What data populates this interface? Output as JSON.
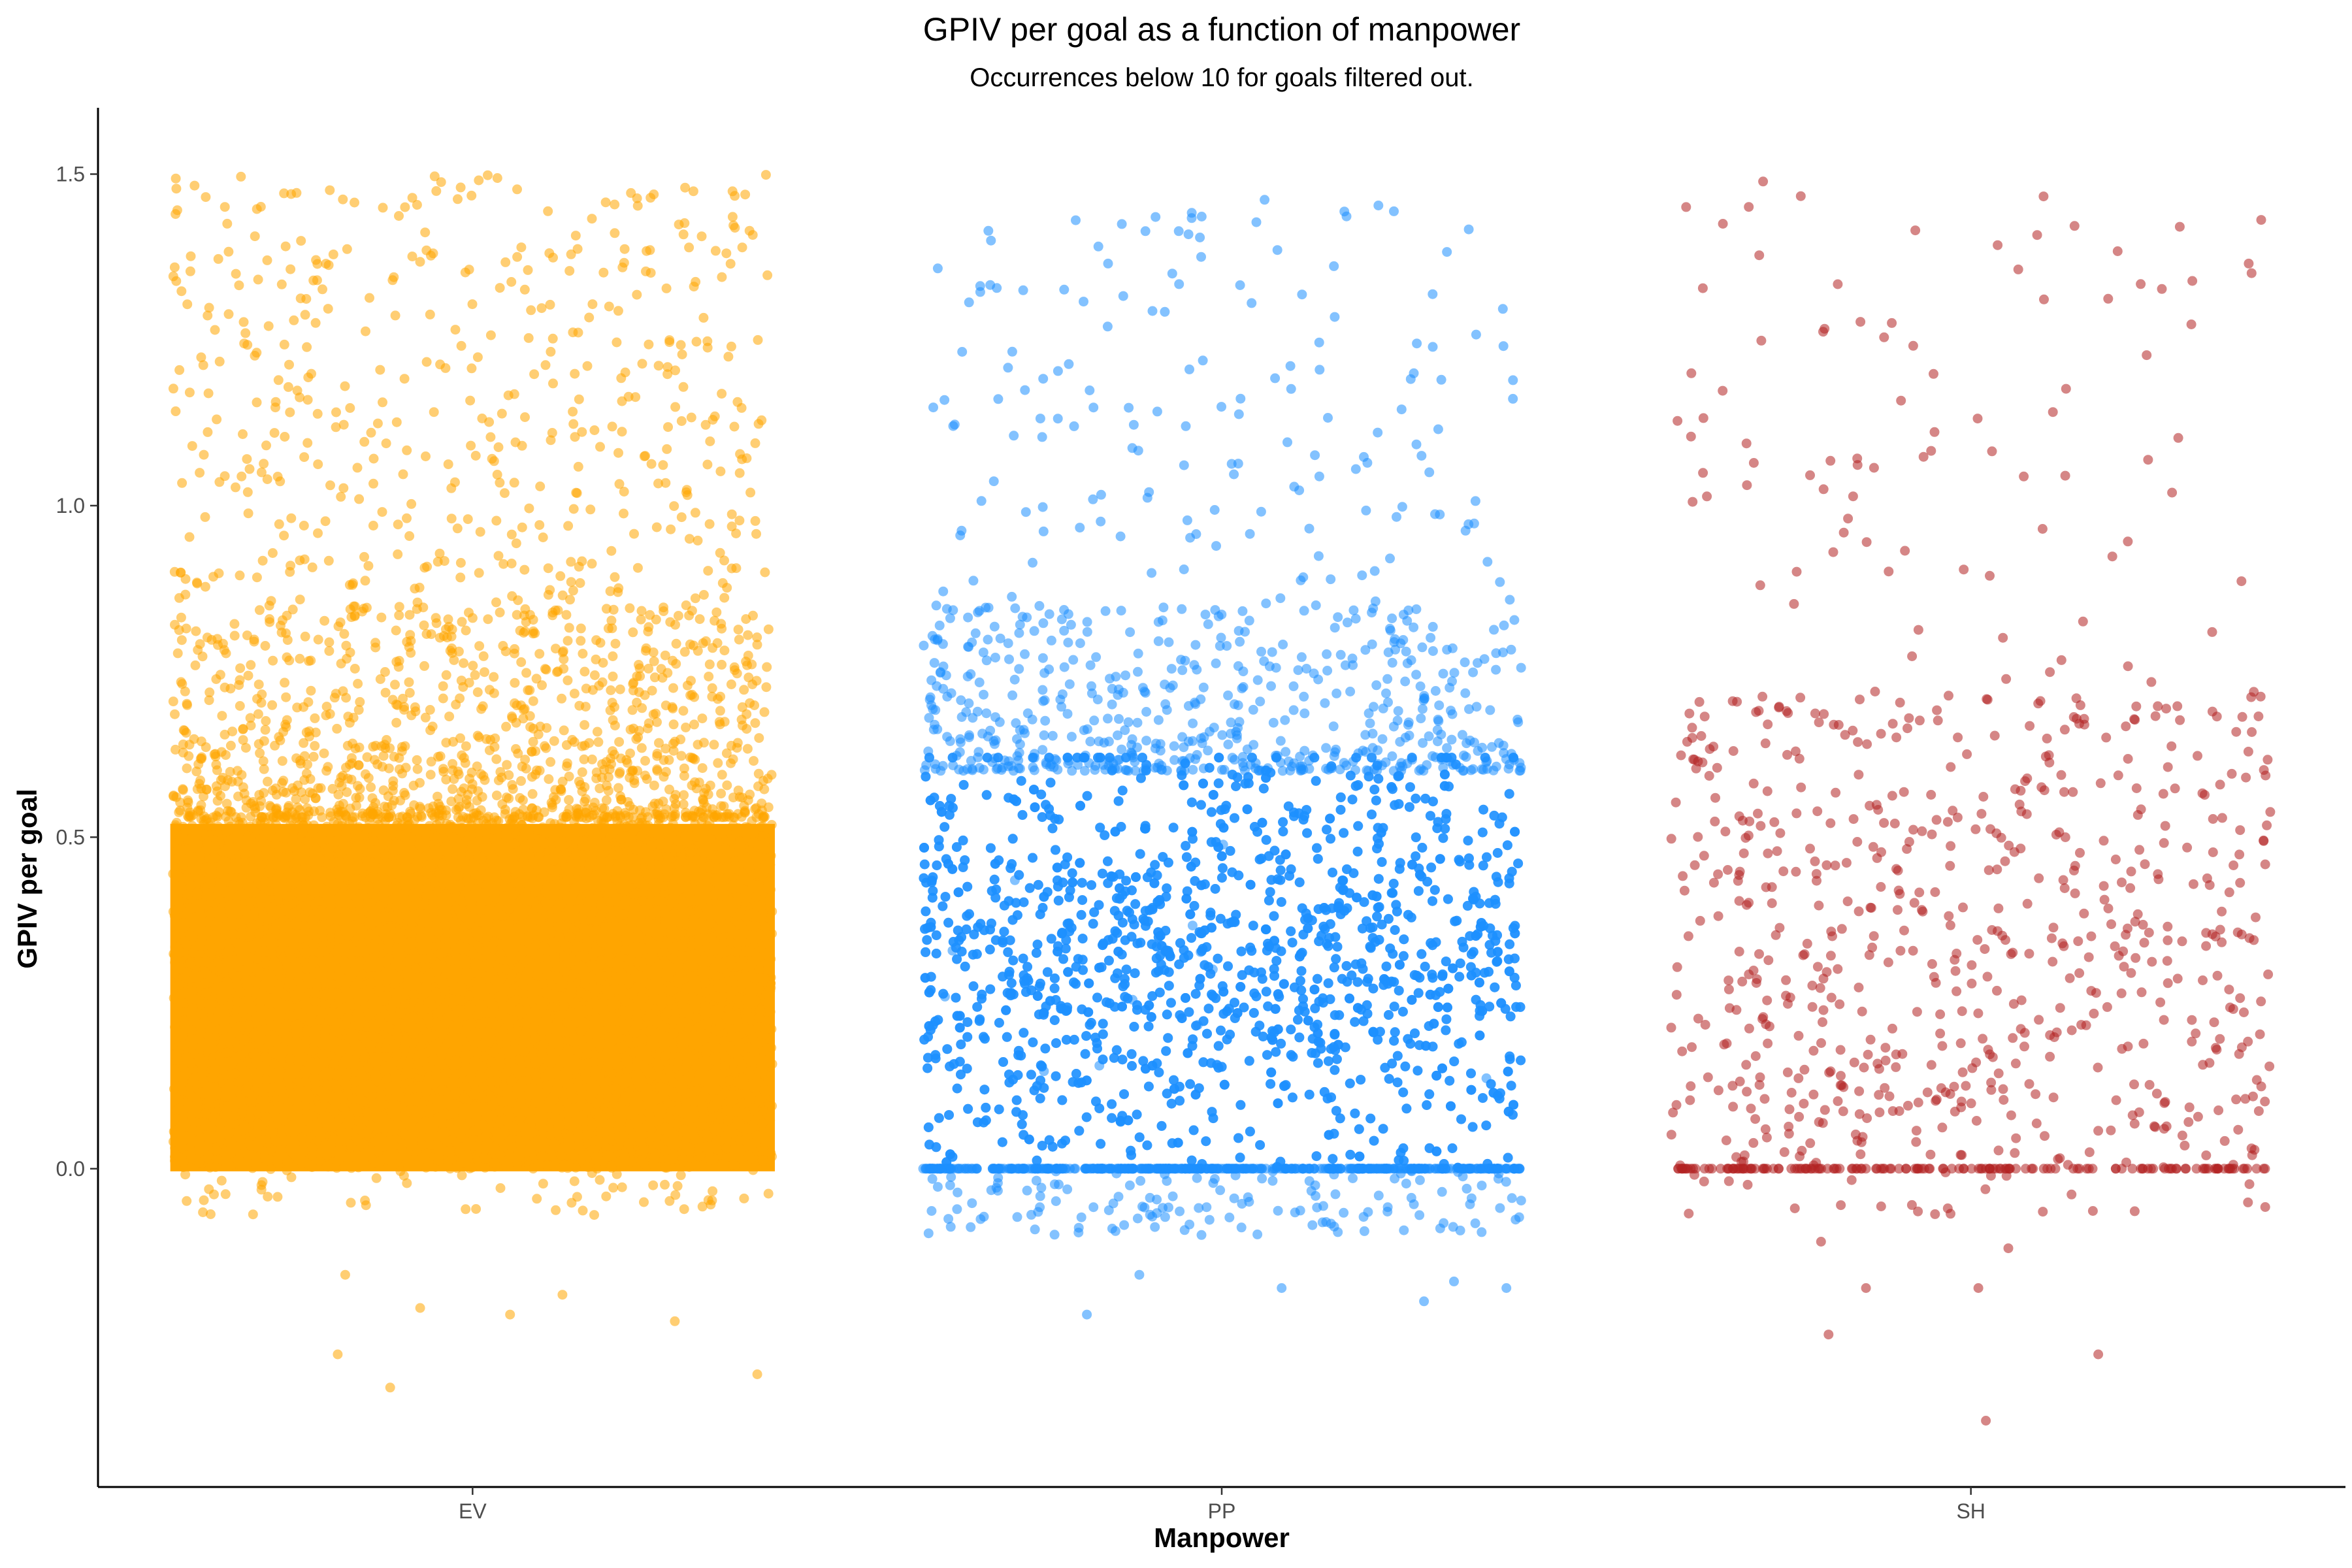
{
  "chart_data": {
    "type": "scatter",
    "title": "GPIV per goal as a function of manpower",
    "subtitle": "Occurrences below 10 for goals filtered out.",
    "xlabel": "Manpower",
    "ylabel": "GPIV per goal",
    "categories": [
      "EV",
      "PP",
      "SH"
    ],
    "y_ticks": [
      "0.0",
      "0.5",
      "1.0",
      "1.5"
    ],
    "y_tick_values": [
      0.0,
      0.5,
      1.0,
      1.5
    ],
    "ylim": [
      -0.48,
      1.6
    ],
    "jitter_width": 0.4,
    "grid": false,
    "legend": "none",
    "series": [
      {
        "category": "EV",
        "color": "#FFA500",
        "approx_points": 40000,
        "dense_range": [
          0.0,
          0.53
        ],
        "max": 1.5,
        "min": -0.33,
        "outliers": [
          [
            -0.18,
            -0.28
          ],
          [
            -0.11,
            -0.33
          ],
          [
            0.38,
            -0.31
          ],
          [
            -0.07,
            -0.21
          ],
          [
            0.12,
            -0.19
          ],
          [
            0.27,
            -0.23
          ],
          [
            -0.17,
            -0.16
          ],
          [
            0.05,
            -0.22
          ]
        ]
      },
      {
        "category": "PP",
        "color": "#1E90FF",
        "approx_points": 12000,
        "dense_range": [
          0.0,
          0.6
        ],
        "zero_band": true,
        "max": 1.47,
        "min": -0.22,
        "outliers": [
          [
            -0.18,
            -0.22
          ],
          [
            0.08,
            -0.18
          ],
          [
            0.27,
            -0.2
          ],
          [
            0.38,
            -0.18
          ],
          [
            -0.11,
            -0.16
          ],
          [
            0.31,
            -0.17
          ]
        ]
      },
      {
        "category": "SH",
        "color": "#B22222",
        "approx_points": 1400,
        "dense_range": [
          0.0,
          0.72
        ],
        "zero_band": true,
        "max": 1.5,
        "min": -0.38,
        "outliers": [
          [
            0.02,
            -0.38
          ],
          [
            -0.19,
            -0.25
          ],
          [
            0.17,
            -0.28
          ],
          [
            0.01,
            -0.18
          ],
          [
            -0.14,
            -0.18
          ],
          [
            -0.2,
            -0.11
          ],
          [
            0.05,
            -0.12
          ]
        ]
      }
    ]
  }
}
